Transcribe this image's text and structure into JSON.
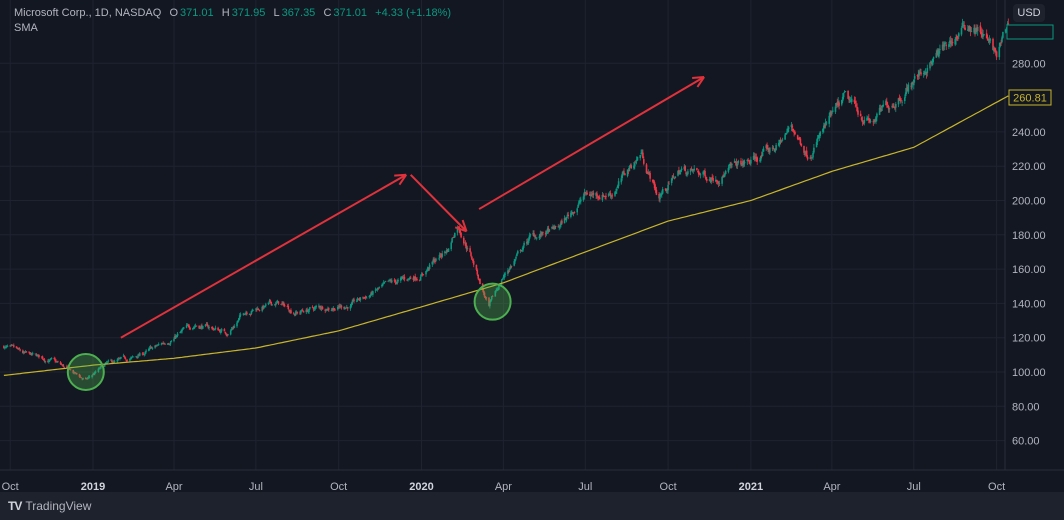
{
  "legend": {
    "symbol": "Microsoft Corp., 1D, NASDAQ",
    "o_label": "O",
    "o": "371.01",
    "h_label": "H",
    "h": "371.95",
    "l_label": "L",
    "l": "367.35",
    "c_label": "C",
    "c": "371.01",
    "change": "+4.33 (+1.18%)",
    "indicator": "SMA"
  },
  "currency_button": "USD",
  "footer": {
    "brand": "TradingView"
  },
  "colors": {
    "up": "#089981",
    "down": "#f23645",
    "sma": "#c9b52a",
    "annotation_arrow": "#e0323c",
    "annotation_circle": "#4caf50",
    "background": "#131722"
  },
  "chart_data": {
    "type": "candlestick",
    "y_ticks": [
      "280.00",
      "240.00",
      "220.00",
      "200.00",
      "180.00",
      "160.00",
      "140.00",
      "120.00",
      "100.00",
      "80.00",
      "60.00"
    ],
    "y_tick_values": [
      280,
      240,
      220,
      200,
      180,
      160,
      140,
      120,
      100,
      80,
      60
    ],
    "ylim": [
      45,
      322
    ],
    "x_ticks": [
      {
        "label": "Oct",
        "date": "2018-10-01",
        "bold": false
      },
      {
        "label": "2019",
        "date": "2019-01-01",
        "bold": true
      },
      {
        "label": "Apr",
        "date": "2019-04-01",
        "bold": false
      },
      {
        "label": "Jul",
        "date": "2019-07-01",
        "bold": false
      },
      {
        "label": "Oct",
        "date": "2019-10-01",
        "bold": false
      },
      {
        "label": "2020",
        "date": "2020-01-01",
        "bold": true
      },
      {
        "label": "Apr",
        "date": "2020-04-01",
        "bold": false
      },
      {
        "label": "Jul",
        "date": "2020-07-01",
        "bold": false
      },
      {
        "label": "Oct",
        "date": "2020-10-01",
        "bold": false
      },
      {
        "label": "2021",
        "date": "2021-01-01",
        "bold": true
      },
      {
        "label": "Apr",
        "date": "2021-04-01",
        "bold": false
      },
      {
        "label": "Jul",
        "date": "2021-07-01",
        "bold": false
      },
      {
        "label": "Oct",
        "date": "2021-10-01",
        "bold": false
      }
    ],
    "price_path": [
      [
        "2018-09-24",
        115
      ],
      [
        "2018-10-15",
        110
      ],
      [
        "2018-11-15",
        107
      ],
      [
        "2018-12-24",
        95
      ],
      [
        "2019-01-15",
        104
      ],
      [
        "2019-02-15",
        108
      ],
      [
        "2019-03-15",
        115
      ],
      [
        "2019-04-25",
        128
      ],
      [
        "2019-05-31",
        123
      ],
      [
        "2019-06-20",
        136
      ],
      [
        "2019-07-25",
        140
      ],
      [
        "2019-08-15",
        135
      ],
      [
        "2019-09-15",
        138
      ],
      [
        "2019-10-15",
        139
      ],
      [
        "2019-11-15",
        148
      ],
      [
        "2019-12-31",
        157
      ],
      [
        "2020-01-31",
        172
      ],
      [
        "2020-02-10",
        187
      ],
      [
        "2020-02-24",
        170
      ],
      [
        "2020-03-16",
        137
      ],
      [
        "2020-03-31",
        155
      ],
      [
        "2020-04-30",
        178
      ],
      [
        "2020-05-31",
        183
      ],
      [
        "2020-06-30",
        203
      ],
      [
        "2020-07-31",
        205
      ],
      [
        "2020-09-01",
        228
      ],
      [
        "2020-09-20",
        202
      ],
      [
        "2020-10-15",
        218
      ],
      [
        "2020-11-15",
        214
      ],
      [
        "2020-12-31",
        222
      ],
      [
        "2021-01-31",
        232
      ],
      [
        "2021-02-15",
        243
      ],
      [
        "2021-03-05",
        228
      ],
      [
        "2021-04-15",
        258
      ],
      [
        "2021-05-15",
        245
      ],
      [
        "2021-06-30",
        270
      ],
      [
        "2021-07-31",
        286
      ],
      [
        "2021-08-31",
        303
      ],
      [
        "2021-09-15",
        298
      ],
      [
        "2021-10-01",
        283
      ],
      [
        "2021-10-14",
        302
      ]
    ],
    "sma_path": [
      [
        "2018-09-24",
        98
      ],
      [
        "2019-01-01",
        104
      ],
      [
        "2019-04-01",
        108
      ],
      [
        "2019-07-01",
        114
      ],
      [
        "2019-10-01",
        124
      ],
      [
        "2020-01-01",
        138
      ],
      [
        "2020-04-01",
        152
      ],
      [
        "2020-07-01",
        170
      ],
      [
        "2020-10-01",
        188
      ],
      [
        "2021-01-01",
        200
      ],
      [
        "2021-04-01",
        217
      ],
      [
        "2021-07-01",
        231
      ],
      [
        "2021-10-14",
        261
      ]
    ],
    "sma_last_label": "260.81",
    "annotations": {
      "arrows": [
        [
          [
            "2019-02-01",
            120
          ],
          [
            "2019-12-15",
            215
          ]
        ],
        [
          [
            "2019-12-20",
            215
          ],
          [
            "2020-02-20",
            182
          ]
        ],
        [
          [
            "2020-03-05",
            195
          ],
          [
            "2020-11-10",
            272
          ]
        ]
      ],
      "circles": [
        [
          "2018-12-24",
          100
        ],
        [
          "2020-03-20",
          141
        ]
      ]
    }
  }
}
